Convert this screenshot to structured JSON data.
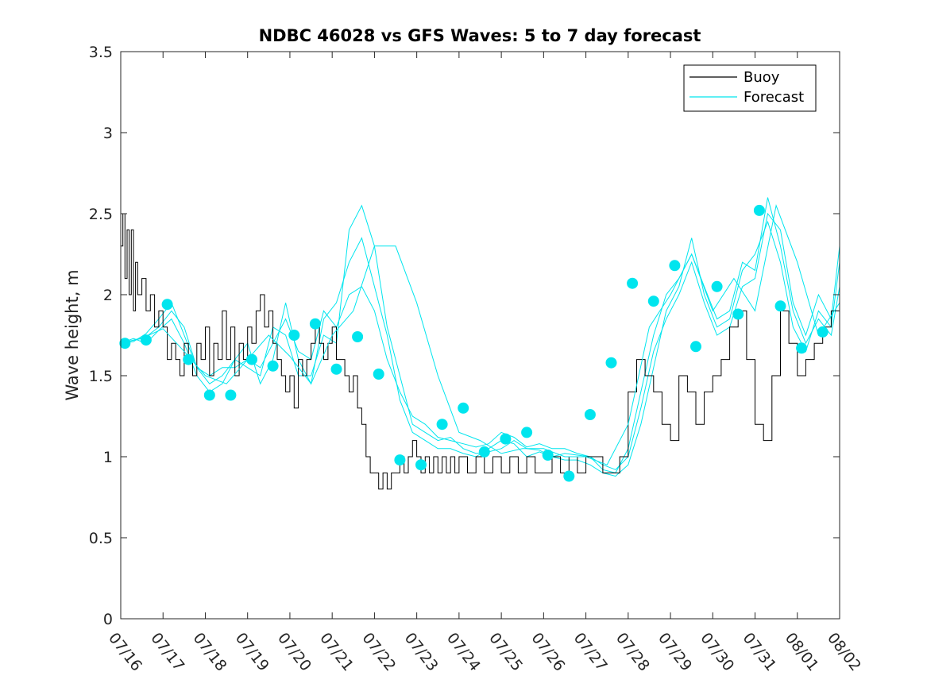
{
  "chart_data": {
    "type": "line",
    "title": "NDBC 46028 vs GFS Waves: 5 to 7 day forecast",
    "xlabel": "",
    "ylabel": "Wave height, m",
    "xlim": [
      0,
      17
    ],
    "ylim": [
      0,
      3.5
    ],
    "x_tick_labels": [
      "07/16",
      "07/17",
      "07/18",
      "07/19",
      "07/20",
      "07/21",
      "07/22",
      "07/23",
      "07/24",
      "07/25",
      "07/26",
      "07/27",
      "07/28",
      "07/29",
      "07/30",
      "07/31",
      "08/01",
      "08/02"
    ],
    "y_ticks": [
      0,
      0.5,
      1,
      1.5,
      2,
      2.5,
      3,
      3.5
    ],
    "y_tick_labels": [
      "0",
      "0.5",
      "1",
      "1.5",
      "2",
      "2.5",
      "3",
      "3.5"
    ],
    "x_unit": "days since 07/16",
    "grid": false,
    "legend_position": "top-right",
    "legend": [
      {
        "label": "Buoy",
        "color": "#000000"
      },
      {
        "label": "Forecast",
        "color": "#00e5ee"
      }
    ],
    "colors": {
      "buoy": "#000000",
      "forecast": "#00e5ee",
      "axes": "#262626"
    },
    "series": [
      {
        "name": "Buoy",
        "color": "#000000",
        "x": [
          0,
          0.05,
          0.1,
          0.15,
          0.2,
          0.25,
          0.3,
          0.35,
          0.4,
          0.5,
          0.6,
          0.7,
          0.8,
          0.9,
          1.0,
          1.1,
          1.2,
          1.3,
          1.4,
          1.5,
          1.6,
          1.7,
          1.8,
          1.9,
          2.0,
          2.1,
          2.2,
          2.3,
          2.4,
          2.5,
          2.6,
          2.7,
          2.8,
          2.9,
          3.0,
          3.1,
          3.2,
          3.3,
          3.4,
          3.5,
          3.6,
          3.7,
          3.8,
          3.9,
          4.0,
          4.1,
          4.2,
          4.3,
          4.4,
          4.5,
          4.6,
          4.7,
          4.8,
          4.9,
          5.0,
          5.1,
          5.2,
          5.3,
          5.4,
          5.5,
          5.6,
          5.7,
          5.8,
          5.9,
          6.0,
          6.1,
          6.2,
          6.3,
          6.4,
          6.5,
          6.6,
          6.7,
          6.8,
          6.9,
          7.0,
          7.1,
          7.2,
          7.3,
          7.4,
          7.5,
          7.6,
          7.7,
          7.8,
          7.9,
          8.0,
          8.2,
          8.4,
          8.6,
          8.8,
          9.0,
          9.2,
          9.4,
          9.6,
          9.8,
          10.0,
          10.2,
          10.4,
          10.6,
          10.8,
          11.0,
          11.2,
          11.4,
          11.6,
          11.8,
          12.0,
          12.2,
          12.4,
          12.6,
          12.8,
          13.0,
          13.2,
          13.4,
          13.6,
          13.8,
          14.0,
          14.2,
          14.4,
          14.6,
          14.8,
          15.0,
          15.2,
          15.4,
          15.6,
          15.8,
          16.0,
          16.2,
          16.4,
          16.6,
          16.8,
          17.0
        ],
        "y": [
          2.3,
          2.5,
          2.1,
          2.4,
          2.0,
          2.4,
          1.9,
          2.2,
          2.0,
          2.1,
          1.9,
          2.0,
          1.8,
          1.9,
          1.8,
          1.6,
          1.7,
          1.6,
          1.5,
          1.7,
          1.6,
          1.5,
          1.7,
          1.6,
          1.8,
          1.5,
          1.7,
          1.6,
          1.9,
          1.6,
          1.8,
          1.5,
          1.7,
          1.6,
          1.8,
          1.7,
          1.9,
          2.0,
          1.8,
          1.9,
          1.7,
          1.6,
          1.5,
          1.4,
          1.5,
          1.3,
          1.6,
          1.5,
          1.6,
          1.7,
          1.8,
          1.7,
          1.6,
          1.7,
          1.8,
          1.6,
          1.6,
          1.5,
          1.4,
          1.5,
          1.3,
          1.2,
          1.0,
          0.9,
          0.9,
          0.8,
          0.9,
          0.8,
          0.9,
          0.9,
          1.0,
          0.9,
          1.0,
          1.1,
          1.0,
          0.9,
          1.0,
          0.9,
          1.0,
          0.9,
          1.0,
          0.9,
          1.0,
          0.9,
          1.0,
          0.9,
          1.0,
          0.9,
          1.0,
          0.9,
          1.0,
          0.9,
          1.0,
          0.9,
          0.9,
          1.0,
          0.9,
          1.0,
          0.9,
          1.0,
          1.0,
          0.9,
          0.9,
          1.0,
          1.4,
          1.6,
          1.5,
          1.4,
          1.2,
          1.1,
          1.5,
          1.4,
          1.2,
          1.4,
          1.5,
          1.6,
          1.8,
          1.9,
          1.6,
          1.2,
          1.1,
          1.5,
          1.9,
          1.7,
          1.5,
          1.6,
          1.7,
          1.8,
          1.9,
          2.0
        ]
      },
      {
        "name": "Forecast",
        "color": "#00e5ee",
        "x": [
          0.0,
          0.5,
          1.0,
          1.5,
          2.0,
          2.5,
          3.0,
          3.5,
          4.0,
          4.5,
          5.0,
          5.5,
          6.0,
          6.5,
          7.0,
          7.5,
          8.0,
          8.5,
          9.0,
          9.5,
          10.0,
          10.5,
          11.0,
          11.5,
          12.0,
          12.5,
          13.0,
          13.5,
          14.0,
          14.5,
          15.0,
          15.5,
          16.0,
          16.5,
          17.0
        ],
        "y": [
          1.7,
          1.73,
          1.79,
          1.65,
          1.5,
          1.45,
          1.6,
          1.75,
          1.62,
          1.45,
          1.75,
          1.9,
          2.3,
          2.3,
          1.95,
          1.5,
          1.15,
          1.1,
          1.02,
          1.05,
          1.05,
          1.0,
          1.0,
          0.95,
          1.2,
          1.8,
          2.0,
          2.25,
          1.9,
          2.1,
          1.9,
          2.55,
          2.2,
          1.75,
          1.95
        ]
      }
    ],
    "forecast_ensemble": [
      {
        "x": [
          0.0,
          0.3,
          0.6,
          0.9,
          1.2,
          1.5,
          1.8,
          2.1,
          2.4,
          2.7,
          3.0,
          3.3,
          3.6,
          3.9,
          4.2,
          4.5,
          4.8,
          5.1,
          5.4,
          5.7,
          6.0,
          6.3,
          6.6,
          6.9,
          7.2,
          7.5,
          7.8,
          8.1,
          8.4,
          8.7,
          9.0,
          9.3,
          9.6,
          9.9,
          10.2,
          10.5,
          10.8,
          11.1,
          11.4,
          11.7,
          12.0,
          12.3,
          12.6,
          12.9,
          13.2,
          13.5,
          13.8,
          14.1,
          14.4,
          14.7,
          15.0,
          15.3,
          15.6,
          15.9,
          16.2,
          16.5,
          16.8,
          17.0
        ],
        "y": [
          1.7,
          1.72,
          1.74,
          1.8,
          1.9,
          1.8,
          1.55,
          1.45,
          1.5,
          1.6,
          1.55,
          1.5,
          1.8,
          1.75,
          1.5,
          1.5,
          1.75,
          1.7,
          2.4,
          2.55,
          2.3,
          1.8,
          1.5,
          1.2,
          1.15,
          1.1,
          1.12,
          1.05,
          1.02,
          1.03,
          1.05,
          1.1,
          1.05,
          1.04,
          1.0,
          1.02,
          1.01,
          1.0,
          0.92,
          0.9,
          1.05,
          1.4,
          1.75,
          2.0,
          2.1,
          2.25,
          2.05,
          1.85,
          1.9,
          2.2,
          2.15,
          2.6,
          2.3,
          1.9,
          1.7,
          1.85,
          1.75,
          2.05
        ]
      },
      {
        "x": [
          0.0,
          0.3,
          0.6,
          0.9,
          1.2,
          1.5,
          1.8,
          2.1,
          2.4,
          2.7,
          3.0,
          3.3,
          3.6,
          3.9,
          4.2,
          4.5,
          4.8,
          5.1,
          5.4,
          5.7,
          6.0,
          6.3,
          6.6,
          6.9,
          7.2,
          7.5,
          7.8,
          8.1,
          8.4,
          8.7,
          9.0,
          9.3,
          9.6,
          9.9,
          10.2,
          10.5,
          10.8,
          11.1,
          11.4,
          11.7,
          12.0,
          12.3,
          12.6,
          12.9,
          13.2,
          13.5,
          13.8,
          14.1,
          14.4,
          14.7,
          15.0,
          15.3,
          15.6,
          15.9,
          16.2,
          16.5,
          16.8,
          17.0
        ],
        "y": [
          1.7,
          1.73,
          1.7,
          1.78,
          1.85,
          1.7,
          1.5,
          1.4,
          1.45,
          1.6,
          1.7,
          1.45,
          1.6,
          1.95,
          1.6,
          1.45,
          1.85,
          1.95,
          2.2,
          2.35,
          2.05,
          1.75,
          1.35,
          1.15,
          1.1,
          1.05,
          1.05,
          1.02,
          1.0,
          1.05,
          1.1,
          1.08,
          1.0,
          1.03,
          1.0,
          0.98,
          0.98,
          0.95,
          0.9,
          0.88,
          0.95,
          1.2,
          1.55,
          1.9,
          2.05,
          2.35,
          2.0,
          1.8,
          1.85,
          2.15,
          2.25,
          2.45,
          2.2,
          1.8,
          1.65,
          1.9,
          1.8,
          2.2
        ]
      },
      {
        "x": [
          0.0,
          0.3,
          0.6,
          0.9,
          1.2,
          1.5,
          1.8,
          2.1,
          2.4,
          2.7,
          3.0,
          3.3,
          3.6,
          3.9,
          4.2,
          4.5,
          4.8,
          5.1,
          5.4,
          5.7,
          6.0,
          6.3,
          6.6,
          6.9,
          7.2,
          7.5,
          7.8,
          8.1,
          8.4,
          8.7,
          9.0,
          9.3,
          9.6,
          9.9,
          10.2,
          10.5,
          10.8,
          11.1,
          11.4,
          11.7,
          12.0,
          12.3,
          12.6,
          12.9,
          13.2,
          13.5,
          13.8,
          14.1,
          14.4,
          14.7,
          15.0,
          15.3,
          15.6,
          15.9,
          16.2,
          16.5,
          16.8,
          17.0
        ],
        "y": [
          1.7,
          1.71,
          1.76,
          1.85,
          1.95,
          1.75,
          1.55,
          1.5,
          1.55,
          1.55,
          1.6,
          1.55,
          1.7,
          1.85,
          1.65,
          1.6,
          1.9,
          1.8,
          2.0,
          2.05,
          1.9,
          1.6,
          1.4,
          1.25,
          1.2,
          1.12,
          1.1,
          1.08,
          1.06,
          1.08,
          1.15,
          1.12,
          1.06,
          1.08,
          1.05,
          1.05,
          1.02,
          1.0,
          0.95,
          0.92,
          1.0,
          1.3,
          1.65,
          1.85,
          2.0,
          2.2,
          1.95,
          1.75,
          1.8,
          2.05,
          2.1,
          2.5,
          2.4,
          1.95,
          1.75,
          2.0,
          1.85,
          2.3
        ]
      }
    ],
    "forecast_markers": {
      "x": [
        0.1,
        0.6,
        1.1,
        1.6,
        2.1,
        2.6,
        3.1,
        3.6,
        4.1,
        4.6,
        5.1,
        5.6,
        6.1,
        6.6,
        7.1,
        7.6,
        8.1,
        8.6,
        9.1,
        9.6,
        10.1,
        10.6,
        11.1,
        11.6,
        12.1,
        12.6,
        13.1,
        13.6,
        14.1,
        14.6,
        15.1,
        15.6,
        16.1,
        16.6
      ],
      "y": [
        1.7,
        1.72,
        1.94,
        1.6,
        1.38,
        1.38,
        1.6,
        1.56,
        1.75,
        1.82,
        1.54,
        1.74,
        1.51,
        0.98,
        0.95,
        1.2,
        1.3,
        1.03,
        1.11,
        1.15,
        1.01,
        0.88,
        1.26,
        1.58,
        2.07,
        1.96,
        2.18,
        1.68,
        2.05,
        1.88,
        2.52,
        1.93,
        1.67,
        1.77
      ]
    }
  }
}
